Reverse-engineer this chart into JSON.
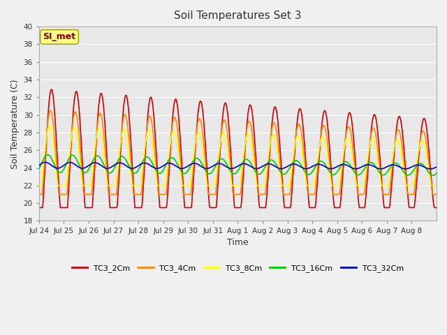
{
  "title": "Soil Temperatures Set 3",
  "xlabel": "Time",
  "ylabel": "Soil Temperature (C)",
  "ylim": [
    18,
    40
  ],
  "yticks": [
    18,
    20,
    22,
    24,
    26,
    28,
    30,
    32,
    34,
    36,
    38,
    40
  ],
  "fig_bg_color": "#f0f0f0",
  "plot_bg_color": "#e8e8e8",
  "series_colors": {
    "TC3_2Cm": "#cc0000",
    "TC3_4Cm": "#ff8800",
    "TC3_8Cm": "#ffff00",
    "TC3_16Cm": "#00cc00",
    "TC3_32Cm": "#0000cc"
  },
  "x_tick_labels": [
    "Jul 24",
    "Jul 25",
    "Jul 26",
    "Jul 27",
    "Jul 28",
    "Jul 29",
    "Jul 30",
    "Jul 31",
    "Aug 1",
    "Aug 2",
    "Aug 3",
    "Aug 4",
    "Aug 5",
    "Aug 6",
    "Aug 7",
    "Aug 8"
  ],
  "annotation_text": "SI_met"
}
